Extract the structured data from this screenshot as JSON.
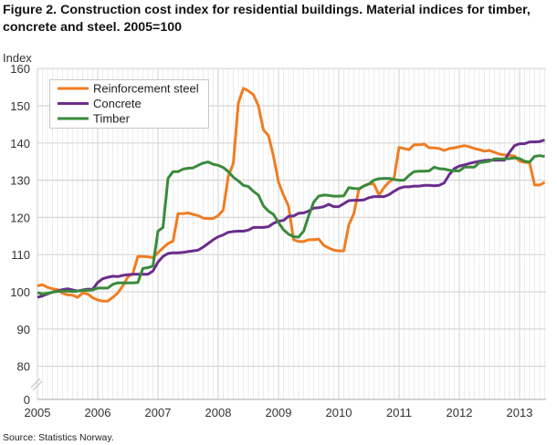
{
  "chart_data": {
    "type": "line",
    "title": "Figure 2. Construction cost index for residential buildings. Material indices for timber, concrete and steel. 2005=100",
    "ylabel": "Index",
    "xlabel": "",
    "source": "Source: Statistics Norway.",
    "ylim": [
      0,
      160
    ],
    "y_axis_break": [
      0,
      80
    ],
    "yticks": [
      0,
      80,
      90,
      100,
      110,
      120,
      130,
      140,
      150,
      160
    ],
    "xtick_labels": [
      "2005",
      "2006",
      "2007",
      "2008",
      "2009",
      "2010",
      "2011",
      "2012",
      "2013"
    ],
    "grid": true,
    "legend_position": "top-left",
    "x": [
      "2005-01",
      "2005-02",
      "2005-03",
      "2005-04",
      "2005-05",
      "2005-06",
      "2005-07",
      "2005-08",
      "2005-09",
      "2005-10",
      "2005-11",
      "2005-12",
      "2006-01",
      "2006-02",
      "2006-03",
      "2006-04",
      "2006-05",
      "2006-06",
      "2006-07",
      "2006-08",
      "2006-09",
      "2006-10",
      "2006-11",
      "2006-12",
      "2007-01",
      "2007-02",
      "2007-03",
      "2007-04",
      "2007-05",
      "2007-06",
      "2007-07",
      "2007-08",
      "2007-09",
      "2007-10",
      "2007-11",
      "2007-12",
      "2008-01",
      "2008-02",
      "2008-03",
      "2008-04",
      "2008-05",
      "2008-06",
      "2008-07",
      "2008-08",
      "2008-09",
      "2008-10",
      "2008-11",
      "2008-12",
      "2009-01",
      "2009-02",
      "2009-03",
      "2009-04",
      "2009-05",
      "2009-06",
      "2009-07",
      "2009-08",
      "2009-09",
      "2009-10",
      "2009-11",
      "2009-12",
      "2010-01",
      "2010-02",
      "2010-03",
      "2010-04",
      "2010-05",
      "2010-06",
      "2010-07",
      "2010-08",
      "2010-09",
      "2010-10",
      "2010-11",
      "2010-12",
      "2011-01",
      "2011-02",
      "2011-03",
      "2011-04",
      "2011-05",
      "2011-06",
      "2011-07",
      "2011-08",
      "2011-09",
      "2011-10",
      "2011-11",
      "2011-12",
      "2012-01",
      "2012-02",
      "2012-03",
      "2012-04",
      "2012-05",
      "2012-06",
      "2012-07",
      "2012-08",
      "2012-09",
      "2012-10",
      "2012-11",
      "2012-12",
      "2013-01",
      "2013-02",
      "2013-03",
      "2013-04",
      "2013-05",
      "2013-06"
    ],
    "series": [
      {
        "name": "Reinforcement steel",
        "color": "#f07d22",
        "values": [
          101.6,
          101.9,
          101.2,
          100.8,
          100.6,
          99.6,
          99.2,
          99.1,
          98.5,
          99.7,
          99.4,
          98.4,
          97.8,
          97.5,
          97.5,
          98.5,
          99.7,
          101.6,
          104,
          104.9,
          109.5,
          109.5,
          109.4,
          109.2,
          110.5,
          111.8,
          113,
          113.6,
          121,
          121,
          121.2,
          120.8,
          120.5,
          119.8,
          119.7,
          119.7,
          120.5,
          122,
          131,
          134.5,
          150.7,
          154.7,
          154,
          153,
          150,
          143.5,
          142,
          136.5,
          129.5,
          126,
          123,
          114,
          113.5,
          113.5,
          114,
          114,
          114.2,
          112.5,
          111.8,
          111.2,
          111,
          111,
          118,
          121,
          127.5,
          128.5,
          129,
          129,
          126,
          128,
          129.5,
          130.5,
          138.8,
          138.5,
          138.2,
          139.5,
          139.5,
          139.7,
          138.7,
          138.7,
          138.5,
          138,
          138.5,
          138.7,
          139,
          139.3,
          139,
          138.5,
          138.2,
          137.8,
          138,
          137.5,
          137,
          136.8,
          136.7,
          136.5,
          135.1,
          134.8,
          134.7,
          128.7,
          128.7,
          129.4
        ]
      },
      {
        "name": "Concrete",
        "color": "#6b2d8c",
        "values": [
          98.5,
          98.9,
          99.4,
          99.9,
          100.2,
          100.6,
          100.8,
          100.5,
          100.2,
          100.5,
          100.7,
          100.7,
          102.5,
          103.5,
          103.9,
          104.2,
          104.1,
          104.4,
          104.6,
          104.7,
          104.7,
          104.7,
          104.7,
          105.6,
          108,
          109.5,
          110.3,
          110.5,
          110.5,
          110.6,
          110.8,
          111,
          111.2,
          112,
          113,
          114,
          114.8,
          115.3,
          116,
          116.2,
          116.3,
          116.3,
          116.6,
          117.3,
          117.3,
          117.3,
          117.5,
          118.4,
          119,
          119.2,
          120.3,
          120.4,
          121.1,
          121.2,
          121.7,
          122.5,
          122.6,
          122.9,
          123.5,
          122.9,
          122.9,
          123.7,
          124.5,
          124.6,
          124.6,
          124.7,
          125.3,
          125.6,
          125.6,
          125.6,
          126.1,
          127,
          127.8,
          128.2,
          128.2,
          128.4,
          128.4,
          128.6,
          128.6,
          128.5,
          128.6,
          129.3,
          131.5,
          133.1,
          133.8,
          134.1,
          134.5,
          134.8,
          135.1,
          135.3,
          135.4,
          135.4,
          135.4,
          135.4,
          137.5,
          139.3,
          139.8,
          139.8,
          140.3,
          140.3,
          140.4,
          140.8
        ]
      },
      {
        "name": "Timber",
        "color": "#3a8a3c",
        "values": [
          99.8,
          99.4,
          99.6,
          99.9,
          100.1,
          100.2,
          100.2,
          100.1,
          100.2,
          100.4,
          100.4,
          100.5,
          101,
          101,
          101,
          102,
          102.4,
          102.4,
          102.4,
          102.4,
          102.5,
          106.3,
          106.5,
          106.9,
          116.3,
          117.3,
          130.5,
          132.3,
          132.3,
          133,
          133.2,
          133.3,
          134,
          134.6,
          134.9,
          134.3,
          134,
          133.4,
          132.3,
          130.8,
          129.8,
          128.6,
          128.3,
          127,
          126,
          123.1,
          121.7,
          120.8,
          118.6,
          116.7,
          115.5,
          114.8,
          114.7,
          116.3,
          120.4,
          124.1,
          125.7,
          126,
          125.9,
          125.7,
          125.7,
          125.8,
          128,
          127.8,
          127.7,
          128.4,
          129,
          130,
          130.4,
          130.5,
          130.5,
          130.2,
          130,
          130,
          131.3,
          132.3,
          132.4,
          132.4,
          132.5,
          133.5,
          133.1,
          133,
          132.7,
          132.5,
          132.5,
          133.5,
          133.5,
          133.5,
          134.7,
          134.9,
          135.1,
          135.7,
          135.7,
          135.7,
          135.8,
          136,
          135.8,
          135.1,
          134.9,
          136.4,
          136.6,
          136.4
        ]
      }
    ]
  }
}
